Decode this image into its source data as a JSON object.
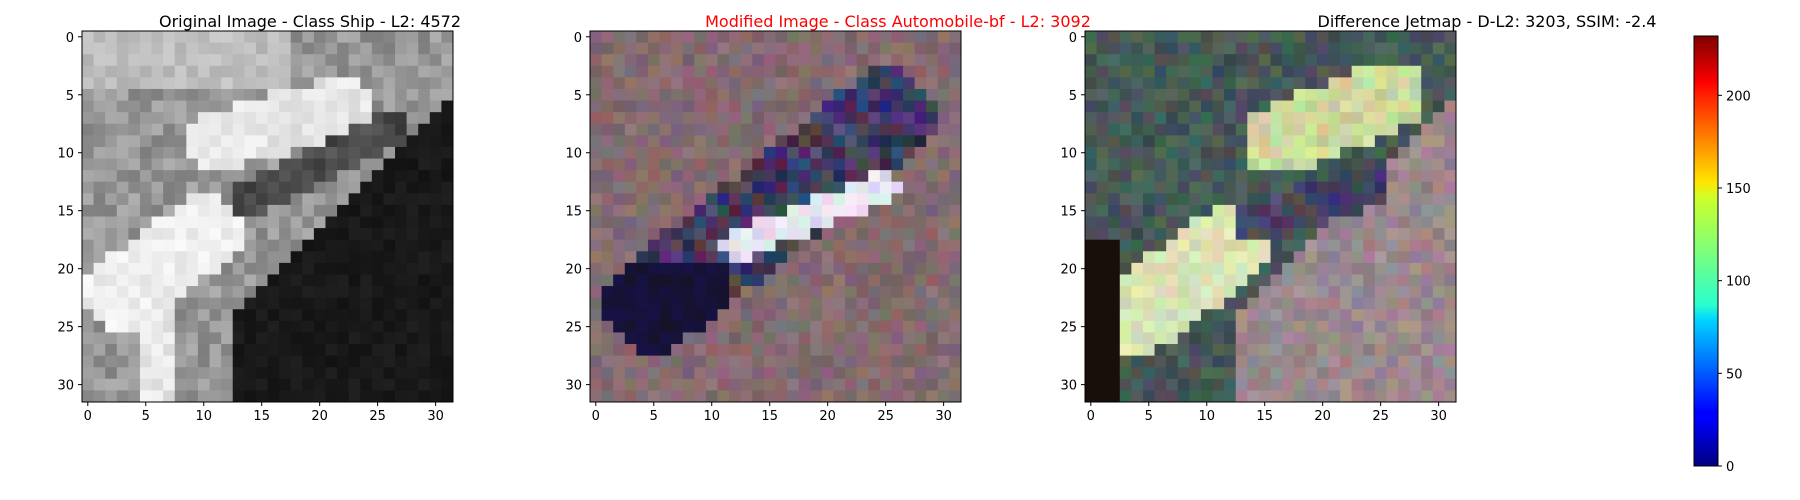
{
  "figure": {
    "panels": [
      {
        "id": "original",
        "title": "Original Image - Class Ship - L2: 4572",
        "title_color": "#000000"
      },
      {
        "id": "modified",
        "title": "Modified Image - Class Automobile-bf - L2: 3092",
        "title_color": "#ff0000"
      },
      {
        "id": "difference",
        "title": "Difference Jetmap - D-L2: 3203, SSIM: -2.4",
        "title_color": "#000000"
      }
    ],
    "colorbar": {
      "ticks": [
        "0",
        "50",
        "100",
        "150",
        "200"
      ],
      "tick_values": [
        0,
        50,
        100,
        150,
        200
      ],
      "range": [
        0,
        232
      ],
      "colormap": "jet"
    }
  },
  "chart_data": [
    {
      "type": "heatmap",
      "title": "Original Image - Class Ship - L2: 4572",
      "grid_size": [
        32,
        32
      ],
      "xlim": [
        -0.5,
        31.5
      ],
      "ylim": [
        31.5,
        -0.5
      ],
      "xticks": [
        "0",
        "5",
        "10",
        "15",
        "20",
        "25",
        "30"
      ],
      "yticks": [
        "0",
        "5",
        "10",
        "15",
        "20",
        "25",
        "30"
      ],
      "colors": "grayscale"
    },
    {
      "type": "heatmap",
      "title": "Modified Image - Class Automobile-bf - L2: 3092",
      "grid_size": [
        32,
        32
      ],
      "xlim": [
        -0.5,
        31.5
      ],
      "ylim": [
        31.5,
        -0.5
      ],
      "xticks": [
        "0",
        "5",
        "10",
        "15",
        "20",
        "25",
        "30"
      ],
      "yticks": [
        "0",
        "5",
        "10",
        "15",
        "20",
        "25",
        "30"
      ],
      "colors": "rgb"
    },
    {
      "type": "heatmap",
      "title": "Difference Jetmap - D-L2: 3203, SSIM: -2.4",
      "grid_size": [
        32,
        32
      ],
      "xlim": [
        -0.5,
        31.5
      ],
      "ylim": [
        31.5,
        -0.5
      ],
      "xticks": [
        "0",
        "5",
        "10",
        "15",
        "20",
        "25",
        "30"
      ],
      "yticks": [
        "0",
        "5",
        "10",
        "15",
        "20",
        "25",
        "30"
      ],
      "colors": "rgb",
      "colorbar_ticks": [
        0,
        50,
        100,
        150,
        200
      ]
    }
  ]
}
